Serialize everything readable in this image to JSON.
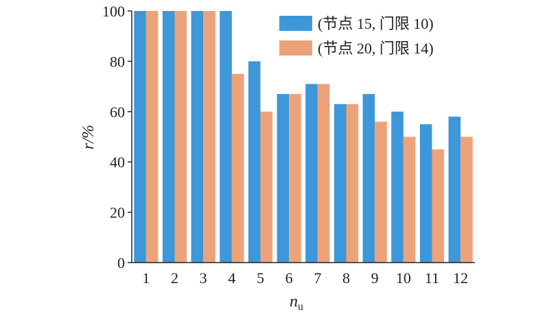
{
  "chart_data": {
    "type": "bar",
    "categories": [
      "1",
      "2",
      "3",
      "4",
      "5",
      "6",
      "7",
      "8",
      "9",
      "10",
      "11",
      "12"
    ],
    "series": [
      {
        "name": "(节点 15, 门限 10)",
        "color": "#3d97d9",
        "values": [
          100,
          100,
          100,
          100,
          80,
          67,
          71,
          63,
          67,
          60,
          55,
          58
        ]
      },
      {
        "name": "(节点 20, 门限 14)",
        "color": "#eda37a",
        "values": [
          100,
          100,
          100,
          75,
          60,
          67,
          71,
          63,
          56,
          50,
          45,
          50
        ]
      }
    ],
    "ylim": [
      0,
      100
    ],
    "yticks": [
      0,
      20,
      40,
      60,
      80,
      100
    ],
    "xlabel": {
      "main": "n",
      "sub": "u"
    },
    "ylabel": "r/%",
    "legend_position": "top-right",
    "grid": false
  }
}
